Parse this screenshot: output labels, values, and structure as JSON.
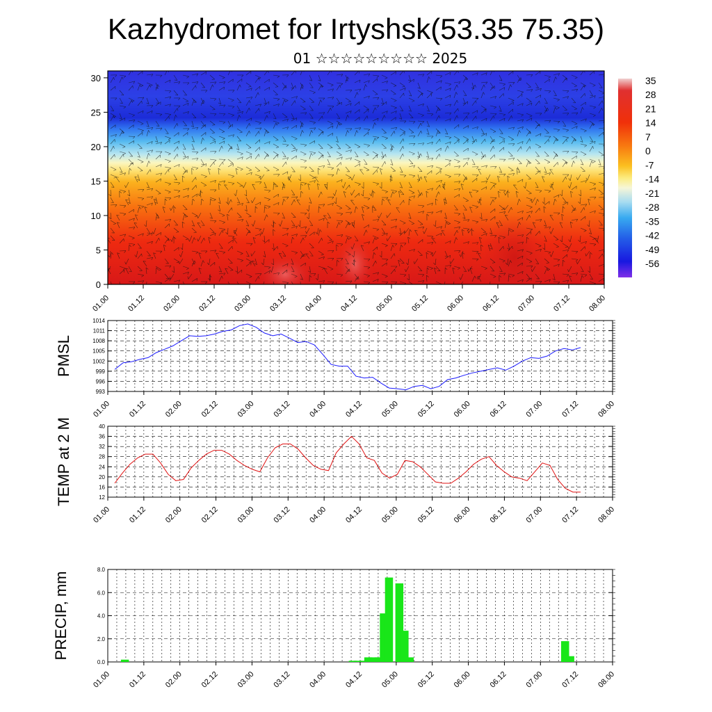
{
  "title": "Kazhydromet for Irtyshsk(53.35 75.35)",
  "subtitle": "01 ☆☆☆☆☆☆☆☆☆ 2025",
  "colors": {
    "pmsl_line": "#1a1aff",
    "temp_line": "#e01010",
    "precip_bar": "#19e619",
    "grid": "#000000"
  },
  "chart_data": [
    {
      "type": "heatmap",
      "name": "cross-section",
      "x_ticks": [
        "01.00",
        "01.12",
        "02.00",
        "02.12",
        "03.00",
        "03.12",
        "04.00",
        "04.12",
        "05.00",
        "05.12",
        "06.00",
        "06.12",
        "07.00",
        "07.12",
        "08.00"
      ],
      "y_ticks": [
        "0",
        "5",
        "10",
        "15",
        "20",
        "25",
        "30"
      ],
      "ylim": [
        0,
        31
      ],
      "colorbar_labels": [
        "35",
        "28",
        "21",
        "14",
        "7",
        "0",
        "-7",
        "-14",
        "-21",
        "-28",
        "-35",
        "-42",
        "-49",
        "-56"
      ],
      "wind_barbs": true
    },
    {
      "type": "line",
      "ylabel": "PMSL",
      "x_ticks": [
        "01.00",
        "01.12",
        "02.00",
        "02.12",
        "03.00",
        "03.12",
        "04.00",
        "04.12",
        "05.00",
        "05.12",
        "06.00",
        "06.12",
        "07.00",
        "07.12",
        "08.00"
      ],
      "y_ticks": [
        "993",
        "996",
        "999",
        "1002",
        "1005",
        "1008",
        "1011",
        "1014"
      ],
      "ylim": [
        993,
        1014
      ],
      "values": [
        999.5,
        1001.5,
        1001.8,
        1002.5,
        1003.0,
        1004.5,
        1005.5,
        1006.5,
        1008.0,
        1009.5,
        1009.3,
        1009.5,
        1010.0,
        1010.8,
        1011.2,
        1012.5,
        1013.0,
        1012.0,
        1010.3,
        1009.5,
        1010.0,
        1008.8,
        1007.5,
        1007.8,
        1006.8,
        1004.0,
        1001.0,
        1000.5,
        1000.5,
        997.5,
        997.0,
        997.2,
        995.5,
        994.0,
        993.8,
        993.5,
        994.5,
        994.8,
        993.8,
        994.5,
        996.5,
        997.0,
        997.8,
        998.5,
        999.0,
        999.5,
        1000.0,
        999.3,
        1000.5,
        1002.0,
        1003.0,
        1002.8,
        1003.5,
        1005.0,
        1005.7,
        1005.3,
        1006.0
      ]
    },
    {
      "type": "line",
      "ylabel": "TEMP at 2 M",
      "x_ticks": [
        "01.00",
        "01.12",
        "02.00",
        "02.12",
        "03.00",
        "03.12",
        "04.00",
        "04.12",
        "05.00",
        "05.12",
        "06.00",
        "06.12",
        "07.00",
        "07.12",
        "08.00"
      ],
      "y_ticks": [
        "12",
        "16",
        "20",
        "24",
        "28",
        "32",
        "36",
        "40"
      ],
      "ylim": [
        12,
        40
      ],
      "values": [
        17.5,
        21.5,
        25.0,
        27.5,
        29.0,
        29.0,
        25.5,
        21.0,
        18.5,
        19.0,
        23.5,
        26.5,
        29.0,
        30.5,
        30.5,
        29.0,
        26.5,
        24.5,
        23.0,
        22.0,
        27.5,
        31.5,
        33.0,
        33.0,
        31.0,
        27.5,
        24.5,
        23.0,
        22.5,
        29.5,
        33.0,
        36.0,
        33.0,
        27.5,
        26.5,
        21.5,
        19.5,
        21.0,
        26.5,
        26.0,
        24.0,
        21.0,
        18.0,
        17.5,
        17.5,
        19.5,
        22.0,
        25.0,
        27.0,
        28.0,
        24.5,
        22.0,
        20.0,
        19.5,
        18.5,
        22.0,
        25.5,
        24.5,
        19.0,
        15.5,
        14.0,
        14.0
      ]
    },
    {
      "type": "bar",
      "ylabel": "PRECIP, mm",
      "x_ticks": [
        "01.00",
        "01.12",
        "02.00",
        "02.12",
        "03.00",
        "03.12",
        "04.00",
        "04.12",
        "05.00",
        "05.12",
        "06.00",
        "06.12",
        "07.00",
        "07.12",
        "08.00"
      ],
      "y_ticks": [
        "0.0",
        "2.0",
        "4.0",
        "6.0",
        "8.0"
      ],
      "ylim": [
        0,
        8
      ],
      "values": [
        0,
        0,
        0.2,
        0,
        0,
        0,
        0,
        0,
        0,
        0,
        0,
        0,
        0,
        0,
        0,
        0,
        0,
        0,
        0,
        0,
        0,
        0,
        0,
        0,
        0,
        0,
        0,
        0,
        0,
        0,
        0,
        0,
        0,
        0,
        0,
        0,
        0,
        0,
        0,
        0,
        0,
        0,
        0,
        0,
        0,
        0,
        0.1,
        0.1,
        0.1,
        0.4,
        0.4,
        0.4,
        4.2,
        7.3,
        0,
        6.8,
        2.7,
        0.4,
        0,
        0,
        0,
        0,
        0,
        0,
        0,
        0,
        0,
        0,
        0,
        0,
        0,
        0,
        0,
        0,
        0,
        0,
        0,
        0,
        0,
        0,
        0,
        0,
        0,
        0,
        0,
        0,
        0,
        1.8,
        0.5,
        0,
        0,
        0,
        0,
        0,
        0,
        0
      ]
    }
  ]
}
